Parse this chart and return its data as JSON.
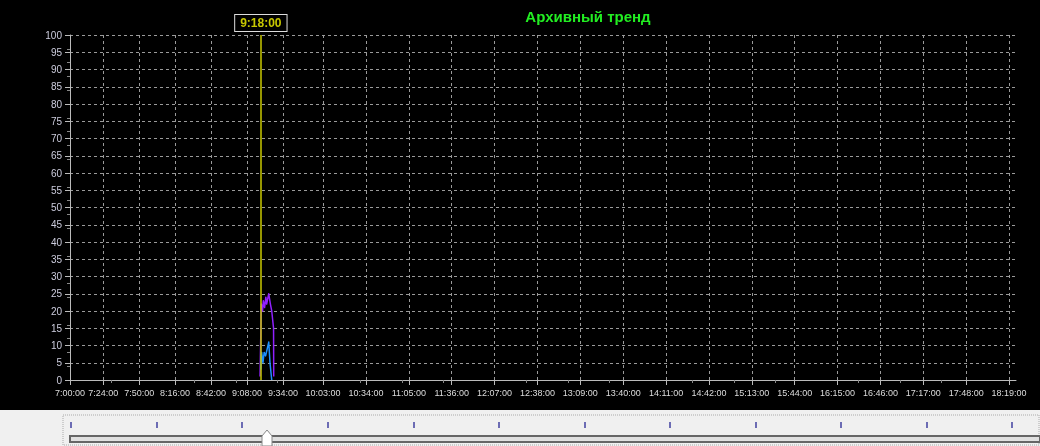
{
  "chart_data": {
    "type": "line",
    "title": "Архивный тренд",
    "xlim": [
      7,
      18.4
    ],
    "ylim": [
      0,
      100
    ],
    "xticks": [
      {
        "value": 7,
        "label": "7:00:00"
      },
      {
        "value": 7.4,
        "label": "7:24:00"
      },
      {
        "value": 7.8333,
        "label": "7:50:00"
      },
      {
        "value": 8.2667,
        "label": "8:16:00"
      },
      {
        "value": 8.7,
        "label": "8:42:00"
      },
      {
        "value": 9.1333,
        "label": "9:08:00"
      },
      {
        "value": 9.5667,
        "label": "9:34:00"
      },
      {
        "value": 10.05,
        "label": "10:03:00"
      },
      {
        "value": 10.5667,
        "label": "10:34:00"
      },
      {
        "value": 11.0833,
        "label": "11:05:00"
      },
      {
        "value": 11.6,
        "label": "11:36:00"
      },
      {
        "value": 12.1167,
        "label": "12:07:00"
      },
      {
        "value": 12.6333,
        "label": "12:38:00"
      },
      {
        "value": 13.15,
        "label": "13:09:00"
      },
      {
        "value": 13.6667,
        "label": "13:40:00"
      },
      {
        "value": 14.1833,
        "label": "14:11:00"
      },
      {
        "value": 14.7,
        "label": "14:42:00"
      },
      {
        "value": 15.2167,
        "label": "15:13:00"
      },
      {
        "value": 15.7333,
        "label": "15:44:00"
      },
      {
        "value": 16.25,
        "label": "16:15:00"
      },
      {
        "value": 16.7667,
        "label": "16:46:00"
      },
      {
        "value": 17.2833,
        "label": "17:17:00"
      },
      {
        "value": 17.8,
        "label": "17:48:00"
      },
      {
        "value": 18.3167,
        "label": "18:19:00"
      }
    ],
    "yticks": [
      0,
      5,
      10,
      15,
      20,
      25,
      30,
      35,
      40,
      45,
      50,
      55,
      60,
      65,
      70,
      75,
      80,
      85,
      90,
      95,
      100
    ],
    "grid": true,
    "marker": "none",
    "line_style": "solid",
    "ref_lines": [
      {
        "axis": "x",
        "value": 9.3,
        "label": "9:18:00",
        "color": "#c8c800"
      }
    ],
    "series": [
      {
        "color": "#9020ff",
        "x": [
          9.29,
          9.306,
          9.32,
          9.33,
          9.345,
          9.36,
          9.37,
          9.395,
          9.415,
          9.431,
          9.453,
          9.455
        ],
        "values": [
          1,
          22,
          20,
          23,
          21,
          24,
          22,
          25,
          22,
          20,
          15,
          1
        ]
      },
      {
        "color": "#1e90ff",
        "x": [
          9.298,
          9.31,
          9.325,
          9.34,
          9.357,
          9.395,
          9.41,
          9.431
        ],
        "values": [
          3,
          8,
          5,
          8,
          7,
          11,
          5,
          0
        ]
      }
    ]
  }
}
